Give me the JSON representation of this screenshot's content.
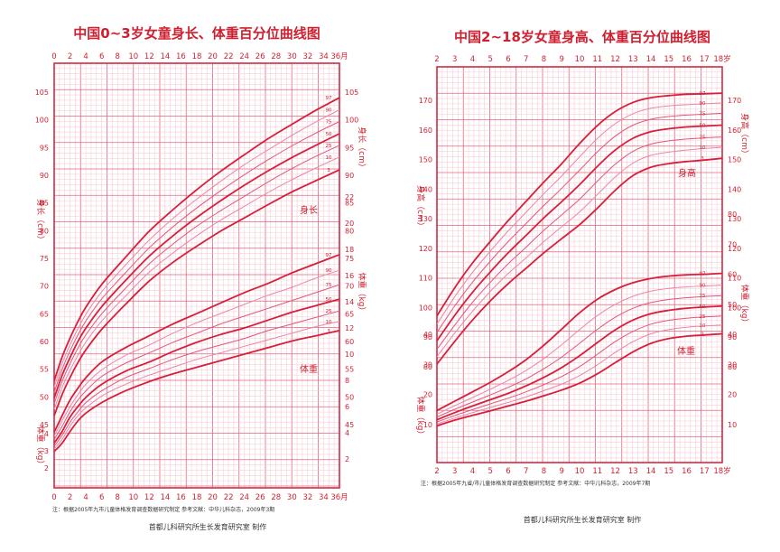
{
  "colors": {
    "grid_minor": "#f6c7cf",
    "grid_major": "#e8667b",
    "frame": "#d6283f",
    "text": "#d21f2f",
    "curve_main": "#d81e3a",
    "curve_mid": "#e5557a",
    "curve_light": "#ec86a6",
    "footer_text": "#333333"
  },
  "chart_data": [
    {
      "type": "line",
      "title": "中国0~3岁女童身长、体重百分位曲线图",
      "x": [
        0,
        1,
        2,
        3,
        4,
        6,
        9,
        12,
        15,
        18,
        21,
        24,
        27,
        30,
        33,
        36
      ],
      "xlim": [
        0,
        36
      ],
      "x_ticks": [
        "0",
        "2",
        "4",
        "6",
        "8",
        "10",
        "12",
        "14",
        "16",
        "18",
        "20",
        "22",
        "24",
        "26",
        "28",
        "30",
        "32",
        "34",
        "36月"
      ],
      "x_ticks_bottom": [
        "0",
        "2",
        "4",
        "6",
        "8",
        "10",
        "12",
        "14",
        "16",
        "18",
        "20",
        "22",
        "24",
        "26",
        "28",
        "30",
        "32",
        "34",
        "36月"
      ],
      "y_left_ticks": [
        "105",
        "100",
        "95",
        "90",
        "85",
        "80",
        "75",
        "70",
        "65",
        "60",
        "55",
        "50",
        "45",
        "4",
        "3",
        "2"
      ],
      "y_right_length_ticks": [
        "105",
        "100",
        "95",
        "90",
        "85",
        "80",
        "75",
        "70",
        "65",
        "60",
        "55",
        "50",
        "45"
      ],
      "y_right_weight_ticks": [
        "22",
        "20",
        "18",
        "16",
        "14",
        "12",
        "10",
        "8",
        "6",
        "4",
        "2"
      ],
      "left_length_label": "身长（cm）",
      "left_weight_label": "体重（kg）",
      "right_length_label": "身长（cm）",
      "right_weight_label": "体重（kg）",
      "length_series": [
        {
          "name": "3",
          "values": [
            46.6,
            50.4,
            53.5,
            56.2,
            58.5,
            62.2,
            66.7,
            70.9,
            74.3,
            77.2,
            79.9,
            82.3,
            84.7,
            87.0,
            89.0,
            91.0
          ]
        },
        {
          "name": "10",
          "values": [
            47.8,
            51.7,
            54.8,
            57.5,
            59.9,
            63.7,
            68.2,
            72.5,
            76.0,
            79.1,
            81.9,
            84.4,
            86.9,
            89.2,
            91.3,
            93.3
          ]
        },
        {
          "name": "25",
          "values": [
            48.8,
            52.8,
            56.0,
            58.8,
            61.2,
            65.0,
            69.6,
            74.0,
            77.6,
            80.8,
            83.6,
            86.2,
            88.8,
            91.2,
            93.4,
            95.4
          ]
        },
        {
          "name": "50",
          "values": [
            49.8,
            53.9,
            57.1,
            60.0,
            62.4,
            66.3,
            71.0,
            75.4,
            79.1,
            82.4,
            85.4,
            88.2,
            90.8,
            93.2,
            95.4,
            97.5
          ]
        },
        {
          "name": "75",
          "values": [
            50.8,
            55.0,
            58.3,
            61.2,
            63.7,
            67.7,
            72.4,
            76.9,
            80.7,
            84.1,
            87.2,
            90.1,
            92.8,
            95.3,
            97.6,
            99.7
          ]
        },
        {
          "name": "90",
          "values": [
            51.8,
            56.0,
            59.4,
            62.3,
            64.9,
            69.0,
            73.8,
            78.3,
            82.2,
            85.7,
            88.9,
            91.9,
            94.6,
            97.2,
            99.6,
            101.8
          ]
        },
        {
          "name": "97",
          "values": [
            52.9,
            57.2,
            60.6,
            63.6,
            66.2,
            70.3,
            75.2,
            79.9,
            83.8,
            87.4,
            90.7,
            93.7,
            96.6,
            99.2,
            101.7,
            104.0
          ]
        }
      ],
      "weight_series": [
        {
          "name": "3",
          "values": [
            2.57,
            3.2,
            4.1,
            4.9,
            5.5,
            6.3,
            7.2,
            7.9,
            8.5,
            9.0,
            9.5,
            10.0,
            10.5,
            11.0,
            11.4,
            11.8
          ]
        },
        {
          "name": "10",
          "values": [
            2.76,
            3.5,
            4.5,
            5.3,
            5.9,
            6.8,
            7.7,
            8.4,
            9.0,
            9.6,
            10.1,
            10.6,
            11.1,
            11.6,
            12.1,
            12.5
          ]
        },
        {
          "name": "25",
          "values": [
            2.96,
            3.8,
            4.8,
            5.6,
            6.3,
            7.2,
            8.2,
            8.9,
            9.6,
            10.2,
            10.7,
            11.2,
            11.8,
            12.3,
            12.8,
            13.3
          ]
        },
        {
          "name": "50",
          "values": [
            3.21,
            4.1,
            5.2,
            6.0,
            6.7,
            7.7,
            8.7,
            9.4,
            10.2,
            10.9,
            11.5,
            12.0,
            12.6,
            13.2,
            13.7,
            14.2
          ]
        },
        {
          "name": "75",
          "values": [
            3.49,
            4.5,
            5.6,
            6.5,
            7.2,
            8.3,
            9.3,
            10.1,
            10.9,
            11.6,
            12.3,
            12.9,
            13.5,
            14.1,
            14.7,
            15.3
          ]
        },
        {
          "name": "90",
          "values": [
            3.75,
            4.9,
            6.0,
            6.9,
            7.7,
            8.8,
            9.9,
            10.7,
            11.6,
            12.4,
            13.1,
            13.8,
            14.5,
            15.1,
            15.8,
            16.4
          ]
        },
        {
          "name": "97",
          "values": [
            4.04,
            5.3,
            6.5,
            7.4,
            8.2,
            9.4,
            10.5,
            11.4,
            12.3,
            13.1,
            13.9,
            14.7,
            15.4,
            16.2,
            16.9,
            17.6
          ]
        }
      ],
      "length_label": "身长",
      "weight_label": "体重",
      "footnote": "注：根据2005年九市儿童体格发育调查数据研究制定          参考文献：中华儿科杂志，2009年3期",
      "credit": "首都儿科研究所生长发育研究室  制作"
    },
    {
      "type": "line",
      "title": "中国2~18岁女童身高、体重百分位曲线图",
      "x": [
        2,
        3,
        4,
        5,
        6,
        7,
        8,
        9,
        10,
        11,
        12,
        13,
        14,
        15,
        16,
        17,
        18
      ],
      "xlim": [
        2,
        18
      ],
      "x_ticks": [
        "2",
        "3",
        "4",
        "5",
        "6",
        "7",
        "8",
        "9",
        "10",
        "11",
        "12",
        "13",
        "14",
        "15",
        "16",
        "17",
        "18岁"
      ],
      "x_ticks_bottom": [
        "2",
        "3",
        "4",
        "5",
        "6",
        "7",
        "8",
        "9",
        "10",
        "11",
        "12",
        "13",
        "14",
        "15",
        "16",
        "17",
        "18岁"
      ],
      "y_left_ticks": [
        "170",
        "160",
        "150",
        "140",
        "130",
        "120",
        "110",
        "100",
        "90",
        "80",
        "40",
        "30",
        "20",
        "10"
      ],
      "y_right_height_ticks": [
        "170",
        "160",
        "150",
        "140",
        "130",
        "120",
        "110",
        "100",
        "90",
        "80"
      ],
      "y_right_weight_ticks": [
        "80",
        "70",
        "60",
        "50",
        "40",
        "30",
        "20",
        "10"
      ],
      "left_height_label": "身高（cm）",
      "left_weight_label": "体重（kg）",
      "right_height_label": "身高（cm）",
      "right_weight_label": "体重（kg）",
      "height_series": [
        {
          "name": "3",
          "values": [
            80.9,
            88.6,
            95.8,
            102.3,
            108.1,
            113.3,
            118.5,
            123.3,
            128.0,
            133.6,
            139.6,
            144.6,
            147.4,
            148.6,
            149.3,
            149.8,
            150.4
          ]
        },
        {
          "name": "10",
          "values": [
            83.4,
            91.4,
            98.8,
            105.5,
            111.5,
            116.8,
            122.3,
            127.3,
            132.3,
            138.2,
            144.1,
            148.8,
            151.4,
            152.5,
            153.2,
            153.7,
            154.1
          ]
        },
        {
          "name": "25",
          "values": [
            85.9,
            94.1,
            101.8,
            108.6,
            114.8,
            120.4,
            126.1,
            131.3,
            136.6,
            142.7,
            148.4,
            152.8,
            155.2,
            156.3,
            156.9,
            157.3,
            157.6
          ]
        },
        {
          "name": "50",
          "values": [
            88.8,
            97.4,
            105.2,
            112.1,
            118.5,
            124.4,
            130.3,
            135.8,
            141.5,
            147.7,
            153.2,
            157.2,
            159.4,
            160.4,
            161.0,
            161.3,
            161.6
          ]
        },
        {
          "name": "75",
          "values": [
            91.6,
            100.6,
            108.6,
            115.7,
            122.3,
            128.4,
            134.5,
            140.3,
            146.4,
            152.6,
            157.9,
            161.6,
            163.6,
            164.5,
            165.0,
            165.3,
            165.6
          ]
        },
        {
          "name": "90",
          "values": [
            94.4,
            103.7,
            111.9,
            119.1,
            125.9,
            132.2,
            138.5,
            144.5,
            150.9,
            157.1,
            162.1,
            165.5,
            167.3,
            168.1,
            168.5,
            168.8,
            169.1
          ]
        },
        {
          "name": "97",
          "values": [
            97.2,
            106.7,
            115.1,
            122.4,
            129.4,
            135.9,
            142.4,
            148.6,
            155.4,
            161.5,
            166.2,
            169.3,
            170.9,
            171.6,
            172.0,
            172.2,
            172.4
          ]
        }
      ],
      "weight_series": [
        {
          "name": "3",
          "values": [
            9.6,
            11.5,
            13.1,
            14.6,
            16.2,
            17.8,
            19.6,
            21.5,
            23.8,
            26.9,
            30.6,
            34.2,
            37.0,
            38.6,
            39.4,
            39.8,
            40.2
          ]
        },
        {
          "name": "10",
          "values": [
            10.2,
            12.2,
            14.0,
            15.7,
            17.4,
            19.2,
            21.3,
            23.5,
            26.3,
            29.9,
            34.0,
            37.6,
            40.2,
            41.6,
            42.4,
            42.8,
            43.1
          ]
        },
        {
          "name": "25",
          "values": [
            10.9,
            13.0,
            15.0,
            16.9,
            18.8,
            20.9,
            23.3,
            26.0,
            29.3,
            33.4,
            37.6,
            41.0,
            43.4,
            44.7,
            45.4,
            45.8,
            46.1
          ]
        },
        {
          "name": "50",
          "values": [
            11.6,
            14.0,
            16.2,
            18.3,
            20.4,
            22.9,
            25.7,
            29.0,
            32.9,
            37.3,
            41.5,
            44.8,
            46.9,
            48.0,
            48.7,
            49.1,
            49.4
          ]
        },
        {
          "name": "75",
          "values": [
            12.5,
            15.1,
            17.5,
            19.9,
            22.4,
            25.2,
            28.6,
            32.5,
            37.0,
            41.7,
            45.7,
            48.7,
            50.6,
            51.6,
            52.2,
            52.6,
            52.9
          ]
        },
        {
          "name": "90",
          "values": [
            13.5,
            16.3,
            19.0,
            21.8,
            24.7,
            28.0,
            32.0,
            36.6,
            41.6,
            46.3,
            50.0,
            52.7,
            54.4,
            55.3,
            55.8,
            56.1,
            56.4
          ]
        },
        {
          "name": "97",
          "values": [
            14.7,
            17.8,
            20.9,
            24.1,
            27.6,
            31.6,
            36.4,
            41.8,
            47.2,
            51.7,
            54.9,
            57.2,
            58.6,
            59.4,
            59.8,
            60.0,
            60.3
          ]
        }
      ],
      "height_label": "身高",
      "weight_label": "体重",
      "footnote": "注：根据2005年九省/市儿童体格发育调查数据研究制定          参考文献：中华儿科杂志，2009年7期",
      "credit": "首都儿科研究所生长发育研究室  制作"
    }
  ]
}
